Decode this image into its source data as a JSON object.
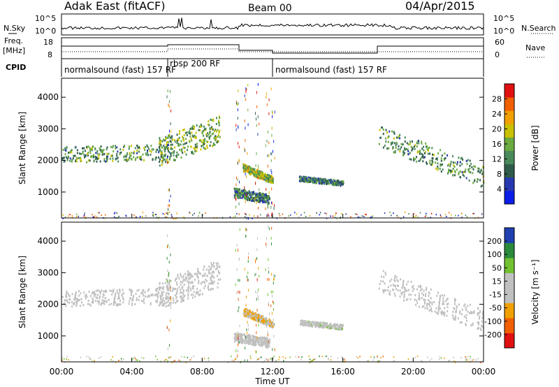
{
  "header": {
    "station": "Adak East (fitACF)",
    "beam": "Beam 00",
    "date": "04/Apr/2015"
  },
  "noise_panel": {
    "left_label": "N.Sky",
    "right_label": "N.Search",
    "y_ticks": [
      "10^5",
      "10^0"
    ]
  },
  "freq_panel": {
    "left_label": "Freq.",
    "left_unit": "[MHz]",
    "left_ticks": [
      "18",
      "8"
    ],
    "right_label": "Nave",
    "right_ticks": [
      "60",
      "0"
    ]
  },
  "cpid_panel": {
    "label": "CPID",
    "segments": [
      {
        "name": "normalsound (fast) 157 RF",
        "start_h": 0,
        "end_h": 6
      },
      {
        "name": "rbsp 200 RF",
        "start_h": 6,
        "end_h": 12
      },
      {
        "name": "normalsound (fast) 157 RF",
        "start_h": 12,
        "end_h": 24
      }
    ]
  },
  "power_panel": {
    "ylabel": "Slant Range [km]",
    "y_ticks": [
      "4000",
      "3000",
      "2000",
      "1000"
    ],
    "colorbar_label": "Power [dB]",
    "colorbar_ticks": [
      "28",
      "24",
      "20",
      "16",
      "12",
      "8",
      "4"
    ]
  },
  "velocity_panel": {
    "ylabel": "Slant Range [km]",
    "y_ticks": [
      "4000",
      "3000",
      "2000",
      "1000"
    ],
    "colorbar_label": "Velocity [m s⁻¹]",
    "colorbar_ticks": [
      "200",
      "100",
      "50",
      "15",
      "-15",
      "-50",
      "-100",
      "-200"
    ]
  },
  "x_axis": {
    "label": "Time UT",
    "ticks": [
      "00:00",
      "04:00",
      "08:00",
      "12:00",
      "16:00",
      "20:00",
      "00:00"
    ]
  },
  "chart_data": {
    "type": "heatmap",
    "x_range_hours": [
      0,
      24
    ],
    "y_range_km": [
      180,
      4600
    ],
    "power_colorscale_db": [
      0,
      30
    ],
    "velocity_colorscale": [
      -250,
      250
    ],
    "power_colors": [
      "#0a1ee8",
      "#2838b0",
      "#2f5c4a",
      "#4a8a5a",
      "#6aaa40",
      "#c8c000",
      "#f0a000",
      "#f06000",
      "#e01010"
    ],
    "velocity_colors": [
      "#e01010",
      "#f06000",
      "#f0a000",
      "#c0c0c0",
      "#c0c0c0",
      "#70c030",
      "#2a8a3a",
      "#2040b0"
    ],
    "echo_bands": [
      {
        "t_start": 0.0,
        "t_end": 6.5,
        "r_start": 2200,
        "r_end": 2300,
        "r_spread": 250,
        "power": 12,
        "velocity": -10
      },
      {
        "t_start": 5.5,
        "t_end": 9.0,
        "r_start": 2300,
        "r_end": 3000,
        "r_spread": 450,
        "power": 14,
        "velocity": -20
      },
      {
        "t_start": 10.3,
        "t_end": 12.0,
        "r_start": 1800,
        "r_end": 1400,
        "r_spread": 120,
        "power": 16,
        "velocity": -60
      },
      {
        "t_start": 9.8,
        "t_end": 11.8,
        "r_start": 1000,
        "r_end": 800,
        "r_spread": 150,
        "power": 10,
        "velocity": 20
      },
      {
        "t_start": 13.5,
        "t_end": 16.0,
        "r_start": 1450,
        "r_end": 1300,
        "r_spread": 80,
        "power": 10,
        "velocity": 30
      },
      {
        "t_start": 18.0,
        "t_end": 24.0,
        "r_start": 2800,
        "r_end": 1500,
        "r_spread": 350,
        "power": 12,
        "velocity": -10
      }
    ]
  }
}
